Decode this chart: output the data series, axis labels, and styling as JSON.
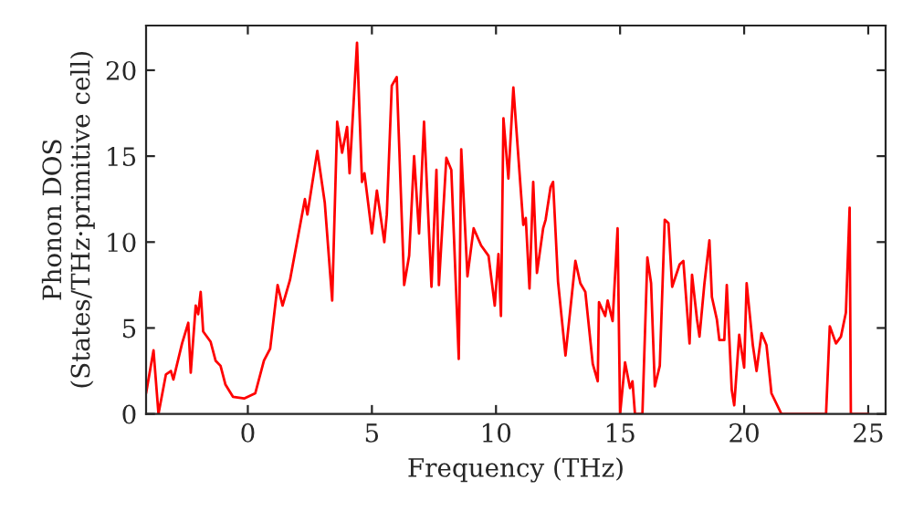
{
  "chart_data": {
    "type": "line",
    "xlabel": "Frequency (THz)",
    "ylabel": "Phonon DOS\n(States/THz·primitive cell)",
    "x": [
      -4.1,
      -3.8,
      -3.6,
      -3.3,
      -3.1,
      -3.0,
      -2.65,
      -2.4,
      -2.3,
      -2.1,
      -2.0,
      -1.9,
      -1.8,
      -1.5,
      -1.3,
      -1.1,
      -0.9,
      -0.6,
      -0.15,
      0.3,
      0.65,
      0.9,
      1.2,
      1.4,
      1.7,
      2.3,
      2.4,
      2.8,
      3.1,
      3.4,
      3.6,
      3.8,
      4.0,
      4.1,
      4.4,
      4.6,
      4.7,
      5.0,
      5.2,
      5.5,
      5.6,
      5.8,
      6.0,
      6.3,
      6.5,
      6.7,
      6.9,
      7.1,
      7.4,
      7.6,
      7.7,
      8.0,
      8.2,
      8.5,
      8.6,
      8.85,
      9.1,
      9.4,
      9.7,
      9.95,
      10.1,
      10.2,
      10.3,
      10.5,
      10.7,
      11.1,
      11.2,
      11.35,
      11.5,
      11.65,
      11.9,
      12.0,
      12.2,
      12.3,
      12.5,
      12.8,
      13.2,
      13.4,
      13.6,
      13.9,
      14.1,
      14.15,
      14.4,
      14.5,
      14.7,
      14.9,
      15.0,
      15.2,
      15.4,
      15.5,
      15.6,
      15.9,
      16.1,
      16.25,
      16.4,
      16.6,
      16.8,
      16.95,
      17.1,
      17.4,
      17.55,
      17.8,
      17.9,
      18.1,
      18.2,
      18.4,
      18.6,
      18.7,
      18.9,
      19.0,
      19.2,
      19.3,
      19.5,
      19.6,
      19.8,
      20.0,
      20.1,
      20.35,
      20.5,
      20.7,
      20.9,
      21.1,
      21.5,
      23.3,
      23.45,
      23.7,
      23.9,
      24.1,
      24.25,
      24.3,
      25.0
    ],
    "series": [
      {
        "color": "#ff0000",
        "values": [
          1.2,
          3.7,
          0,
          2.3,
          2.5,
          2.0,
          4.1,
          5.3,
          2.4,
          6.3,
          5.8,
          7.1,
          4.8,
          4.2,
          3.1,
          2.8,
          1.7,
          1.0,
          0.9,
          1.2,
          3.1,
          3.8,
          7.5,
          6.3,
          7.8,
          12.5,
          11.6,
          15.3,
          12.3,
          6.6,
          17.0,
          15.2,
          16.7,
          14.0,
          21.6,
          13.5,
          14.0,
          10.5,
          13.0,
          10.0,
          11.6,
          19.1,
          19.6,
          7.5,
          9.2,
          15.0,
          10.5,
          17.0,
          7.4,
          14.2,
          7.5,
          14.9,
          14.2,
          3.2,
          15.4,
          8.0,
          10.8,
          9.8,
          9.2,
          6.3,
          9.3,
          5.7,
          17.2,
          13.7,
          19.0,
          11.0,
          11.4,
          7.3,
          13.5,
          8.2,
          10.8,
          11.3,
          13.2,
          13.5,
          7.7,
          3.4,
          8.9,
          7.6,
          7.1,
          2.9,
          1.9,
          6.5,
          5.7,
          6.6,
          5.4,
          10.8,
          0,
          3.0,
          1.5,
          1.9,
          0,
          0,
          9.1,
          7.6,
          1.6,
          2.8,
          11.3,
          11.1,
          7.4,
          8.7,
          8.9,
          4.1,
          8.1,
          5.5,
          4.5,
          7.6,
          10.1,
          6.8,
          5.5,
          4.3,
          4.3,
          7.5,
          1.4,
          0.5,
          4.6,
          2.7,
          7.6,
          4.0,
          2.5,
          4.7,
          4.0,
          1.2,
          0,
          0,
          5.1,
          4.1,
          4.5,
          5.9,
          12.0,
          0,
          0
        ]
      }
    ],
    "xlim": [
      -4.1,
      25.7
    ],
    "ylim": [
      0,
      22.6
    ],
    "xticks": [
      0,
      5,
      10,
      15,
      20,
      25
    ],
    "yticks": [
      0,
      5,
      10,
      15,
      20
    ]
  }
}
